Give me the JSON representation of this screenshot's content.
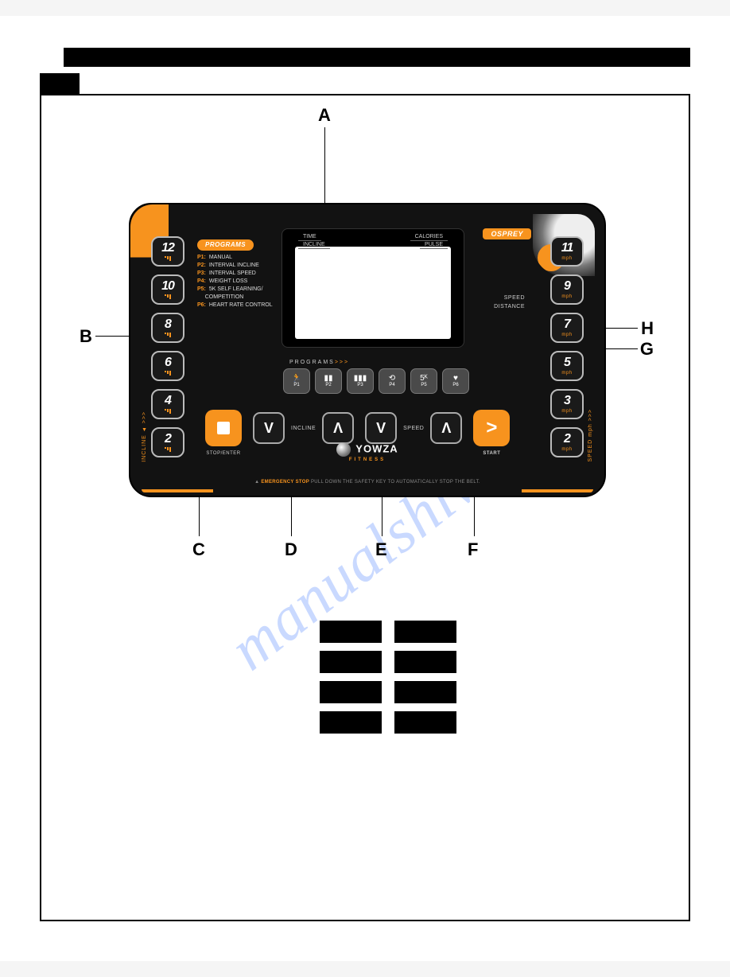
{
  "colors": {
    "accent": "#f7931e",
    "panel_bg": "#121212",
    "btn_border": "#bbbbbb",
    "text_light": "#cccccc",
    "black": "#000000",
    "watermark": "rgba(60,120,255,0.28)"
  },
  "watermark": "manualshive",
  "callouts": {
    "A": "A",
    "B": "B",
    "C": "C",
    "D": "D",
    "E": "E",
    "F": "F",
    "G": "G",
    "H": "H"
  },
  "console": {
    "model": "OSPREY",
    "display_labels": {
      "tl": "TIME",
      "tr": "CALORIES",
      "bl": "INCLINE",
      "br": "PULSE"
    },
    "right_labels": {
      "a": "SPEED",
      "b": "DISTANCE"
    },
    "programs_pill": "PROGRAMS",
    "programs_list": [
      {
        "k": "P1",
        "v": "MANUAL"
      },
      {
        "k": "P2",
        "v": "INTERVAL INCLINE"
      },
      {
        "k": "P3",
        "v": "INTERVAL SPEED"
      },
      {
        "k": "P4",
        "v": "WEIGHT LOSS"
      },
      {
        "k": "P5",
        "v": "5K SELF LEARNING/\nCOMPETITION"
      },
      {
        "k": "P6",
        "v": "HEART RATE CONTROL"
      }
    ],
    "incline_col_label": "INCLINE ▲ >>>",
    "speed_col_label": "SPEED mph >>>",
    "incline_buttons": [
      "12",
      "10",
      "8",
      "6",
      "4",
      "2"
    ],
    "speed_buttons": [
      "11",
      "9",
      "7",
      "5",
      "3",
      "2"
    ],
    "speed_unit": "mph",
    "programs_row_label": "PROGRAMS",
    "programs_row_chevrons": ">>>",
    "program_buttons": [
      "P1",
      "P2",
      "P3",
      "P4",
      "P5",
      "P6"
    ],
    "controls": {
      "stop": "STOP/ENTER",
      "start": "START",
      "incline_label": "INCLINE",
      "speed_label": "SPEED",
      "down": "V",
      "up": "Λ",
      "play": ">"
    },
    "logo": {
      "name": "YOWZA",
      "sub": "FITNESS"
    },
    "warning": {
      "tag": "EMERGENCY STOP",
      "text": "PULL DOWN THE SAFETY KEY TO AUTOMATICALLY STOP THE BELT."
    }
  }
}
